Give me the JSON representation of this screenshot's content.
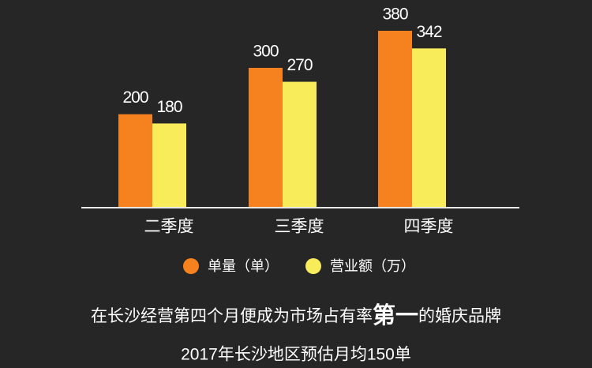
{
  "chart_data": {
    "type": "bar",
    "categories": [
      "二季度",
      "三季度",
      "四季度"
    ],
    "series": [
      {
        "name": "单量（单）",
        "color": "#f5821f",
        "values": [
          200,
          300,
          380
        ]
      },
      {
        "name": "营业额（万）",
        "color": "#f8ec5b",
        "values": [
          180,
          270,
          342
        ]
      }
    ],
    "annotation_parts": [
      "在长沙经营第四个月便成为市场占有率",
      "第一",
      "的婚庆品牌"
    ],
    "footnote": "2017年长沙地区预估月均150单"
  }
}
